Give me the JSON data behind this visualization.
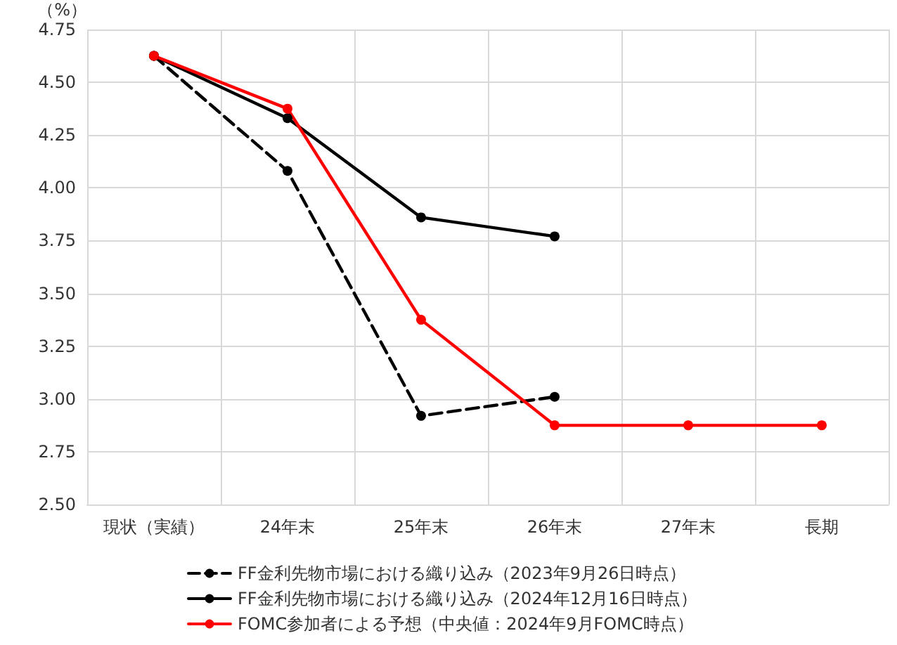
{
  "chart_data": {
    "type": "line",
    "ylabel": "（%）",
    "categories": [
      "現状（実績）",
      "24年末",
      "25年末",
      "26年末",
      "27年末",
      "長期"
    ],
    "series": [
      {
        "name": "FF金利先物市場における織り込み（2023年9月26日時点）",
        "color": "#000000",
        "line_style": "dashed",
        "values": [
          4.625,
          4.08,
          2.92,
          3.01,
          null,
          null
        ]
      },
      {
        "name": "FF金利先物市場における織り込み（2024年12月16日時点）",
        "color": "#000000",
        "line_style": "solid",
        "values": [
          4.625,
          4.33,
          3.86,
          3.77,
          null,
          null
        ]
      },
      {
        "name": "FOMC参加者による予想（中央値：2024年9月FOMC時点）",
        "color": "#ff0000",
        "line_style": "solid",
        "values": [
          4.625,
          4.375,
          3.375,
          2.875,
          2.875,
          2.875
        ]
      }
    ],
    "ylim": [
      2.5,
      4.75
    ],
    "yticks": [
      {
        "value": 2.5,
        "label": "2.50"
      },
      2.75,
      {
        "value": 3,
        "label": "3.00"
      },
      3.25,
      {
        "value": 3.5,
        "label": "3.50"
      },
      3.75,
      {
        "value": 4,
        "label": "4.00"
      },
      4.25,
      {
        "value": 4.5,
        "label": "4.50"
      },
      4.75
    ],
    "grid": true,
    "legend": "bottom",
    "marker": "circle"
  }
}
